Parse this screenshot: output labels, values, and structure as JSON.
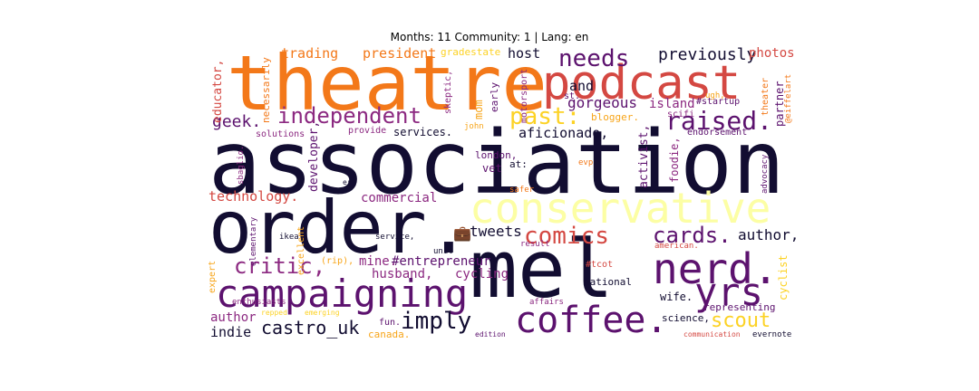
{
  "title": "Months: 11 Community: 1 | Lang: en",
  "colors": {
    "dark": "#120d31",
    "purple": "#5c126e",
    "magenta": "#8c2981",
    "red": "#d44842",
    "orange": "#f37819",
    "yellow": "#fcd225",
    "pale": "#fcfea4",
    "amber": "#f7a51a"
  },
  "words": {
    "theatre": "theatre",
    "association": "association",
    "order": "order.",
    "mel": "mel",
    "podcast": "podcast",
    "conservative": "conservative",
    "campaigning": "campaigning",
    "coffee": "coffee.",
    "nerd": "nerd.",
    "yrs": "yrs",
    "independent": "independent",
    "needs": "needs",
    "raised": "raised.",
    "past": "past:",
    "comics": "comics",
    "cards": "cards.",
    "critic": "critic,",
    "imply": "imply",
    "castro_uk": "castro_uk",
    "scout": "scout",
    "previously": "previously",
    "president": "president",
    "trading": "trading",
    "host": "host",
    "photos": "photos",
    "geek": "geek.",
    "gorgeous": "gorgeous",
    "island": "island",
    "and": "and",
    "tweets": "tweets",
    "author": "author,",
    "author2": "author",
    "indie": "indie",
    "technology": "technology.",
    "commercial": "commercial",
    "entrepreneur": "#entrepreneur",
    "husband": "husband,",
    "cycling": "cycling",
    "mine": "mine.",
    "aficionado": "aficionado,",
    "london": "london,",
    "vet": "vet",
    "at": "at:",
    "services": "services.",
    "provide": "provide",
    "solutions": "solutions",
    "blogger": "blogger.",
    "endorsement": "endorsement",
    "scifi": "scifi",
    "st": "st.",
    "startup": "#startup",
    "national": "national",
    "tcot": "#tcot",
    "wife": "wife.",
    "science": "science,",
    "representing": "representing",
    "communication": "communication",
    "evernote": "evernote",
    "edition": "edition",
    "fun": "fun.",
    "canada": "canada.",
    "affairs": "affairs",
    "enthusiasts": "enthusiasts",
    "repped": "repped",
    "emerging": "emerging",
    "rip": "(rip),",
    "ikea": "ikea",
    "service": "service,",
    "unit": "unit",
    "result": "result",
    "american": "american.",
    "safer": "safer",
    "evp": "evp",
    "er": "er",
    "john": "john",
    "mom": "mom",
    "early": "early",
    "gradestate": "gradestate",
    "ugh": "ugh,",
    "skeptic": "skeptic,",
    "necessarily": "necessarily",
    "educator": "educator,",
    "developer": "developer,",
    "activist": "activist,",
    "foodie": "foodie,",
    "motorsport": "motorsport",
    "partner": "partner",
    "theater": "theater",
    "eiffelart": "@eiffelart",
    "advocacy": "advocacy",
    "cyclist": "cyclist",
    "excellent": "excellent",
    "elementary": "elementary",
    "expert": "expert",
    "sbaglio": "sbaglio.",
    "glyph": "💼"
  }
}
